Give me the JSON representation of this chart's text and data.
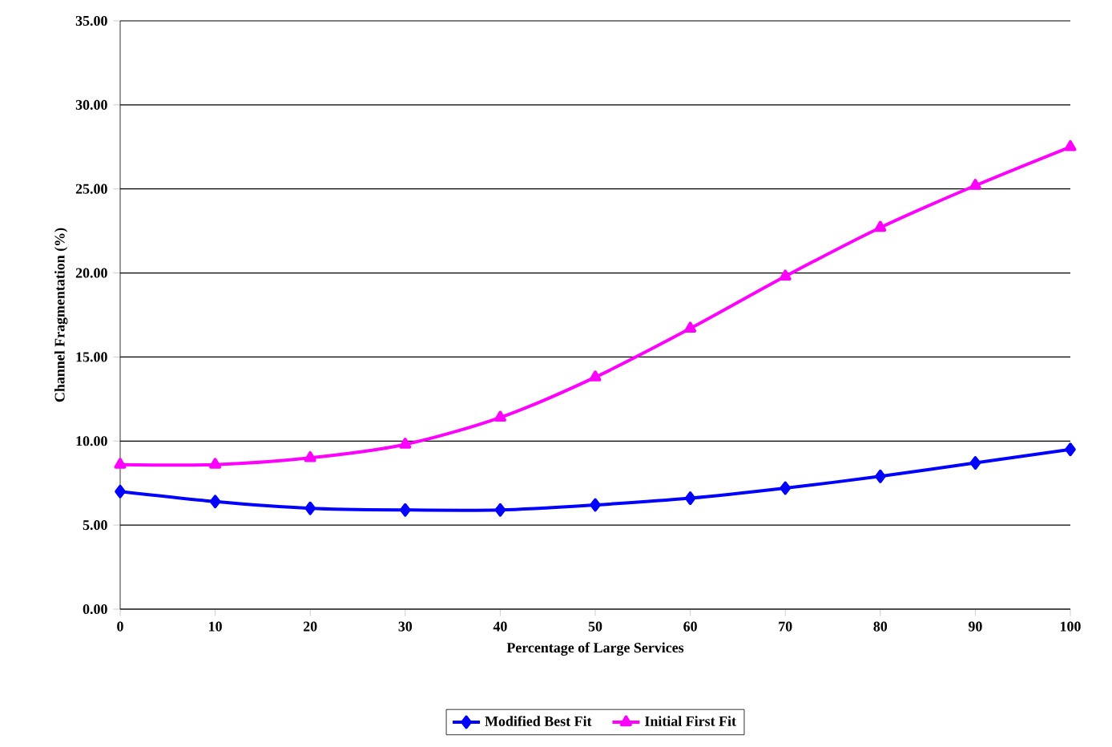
{
  "chart_data": {
    "type": "line",
    "xlabel": "Percentage of Large Services",
    "ylabel": "Channel Fragmentation (%)",
    "x": [
      0,
      10,
      20,
      30,
      40,
      50,
      60,
      70,
      80,
      90,
      100
    ],
    "series": [
      {
        "name": "Modified Best Fit",
        "color": "#0000ff",
        "marker": "diamond",
        "values": [
          7.0,
          6.4,
          6.0,
          5.9,
          5.9,
          6.2,
          6.6,
          7.2,
          7.9,
          8.7,
          9.5
        ]
      },
      {
        "name": "Initial First Fit",
        "color": "#ff00ff",
        "marker": "triangle",
        "values": [
          8.6,
          8.6,
          9.0,
          9.8,
          11.4,
          13.8,
          16.7,
          19.8,
          22.7,
          25.2,
          27.5
        ]
      }
    ],
    "xlim": [
      0,
      100
    ],
    "xticks": [
      0,
      10,
      20,
      30,
      40,
      50,
      60,
      70,
      80,
      90,
      100
    ],
    "ylim": [
      0,
      35
    ],
    "yticks": [
      {
        "value": 0,
        "label": "0.00"
      },
      {
        "value": 5,
        "label": "5.00"
      },
      {
        "value": 10,
        "label": "10.00"
      },
      {
        "value": 15,
        "label": "15.00"
      },
      {
        "value": 20,
        "label": "20.00"
      },
      {
        "value": 25,
        "label": "25.00"
      },
      {
        "value": 30,
        "label": "30.00"
      },
      {
        "value": 35,
        "label": "35.00"
      }
    ],
    "grid": "y",
    "legend": "bottom",
    "line_style": "solid"
  }
}
